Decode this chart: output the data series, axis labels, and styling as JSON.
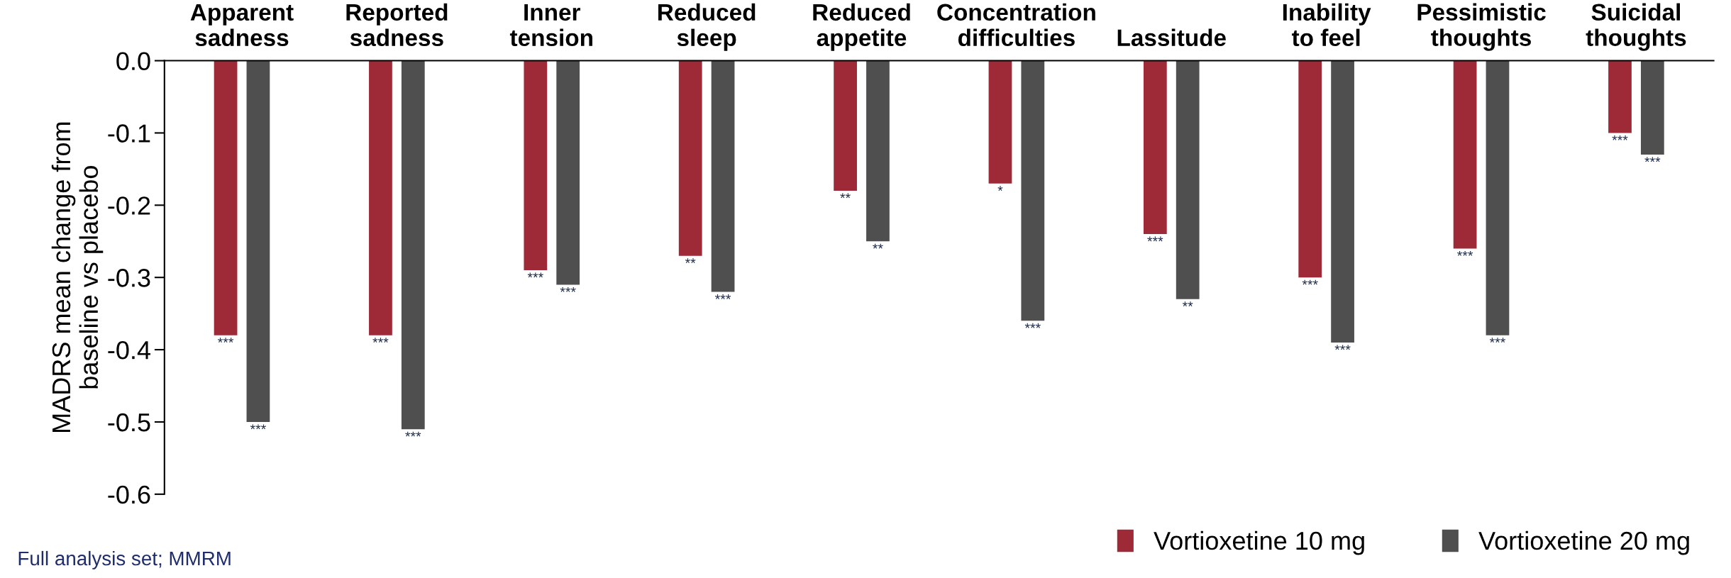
{
  "chart_data": {
    "type": "bar",
    "ylabel": "MADRS mean change from\nbaseline vs placebo",
    "categories": [
      "Apparent\nsadness",
      "Reported\nsadness",
      "Inner\ntension",
      "Reduced\nsleep",
      "Reduced\nappetite",
      "Concentration\ndifficulties",
      "Lassitude",
      "Inability\nto feel",
      "Pessimistic\nthoughts",
      "Suicidal\nthoughts"
    ],
    "series": [
      {
        "name": "Vortioxetine 10 mg",
        "color": "#9e2a38",
        "values": [
          -0.38,
          -0.38,
          -0.29,
          -0.27,
          -0.18,
          -0.17,
          -0.24,
          -0.3,
          -0.26,
          -0.1
        ],
        "value_labels": [
          "***",
          "***",
          "***",
          "**",
          "**",
          "*",
          "***",
          "***",
          "***",
          "***"
        ]
      },
      {
        "name": "Vortioxetine 20 mg",
        "color": "#4f4f4f",
        "values": [
          -0.5,
          -0.51,
          -0.31,
          -0.32,
          -0.25,
          -0.36,
          -0.33,
          -0.39,
          -0.38,
          -0.13
        ],
        "value_labels": [
          "***",
          "***",
          "***",
          "***",
          "**",
          "***",
          "**",
          "***",
          "***",
          "***"
        ]
      }
    ],
    "ylim": [
      -0.6,
      0.0
    ],
    "yticks": [
      {
        "value": 0.0,
        "label": "0.0"
      },
      -0.1,
      -0.2,
      -0.3,
      -0.4,
      -0.5,
      -0.6
    ],
    "grid": false,
    "legend": "bottom right",
    "annotations": [
      "Full analysis set; MMRM"
    ]
  }
}
